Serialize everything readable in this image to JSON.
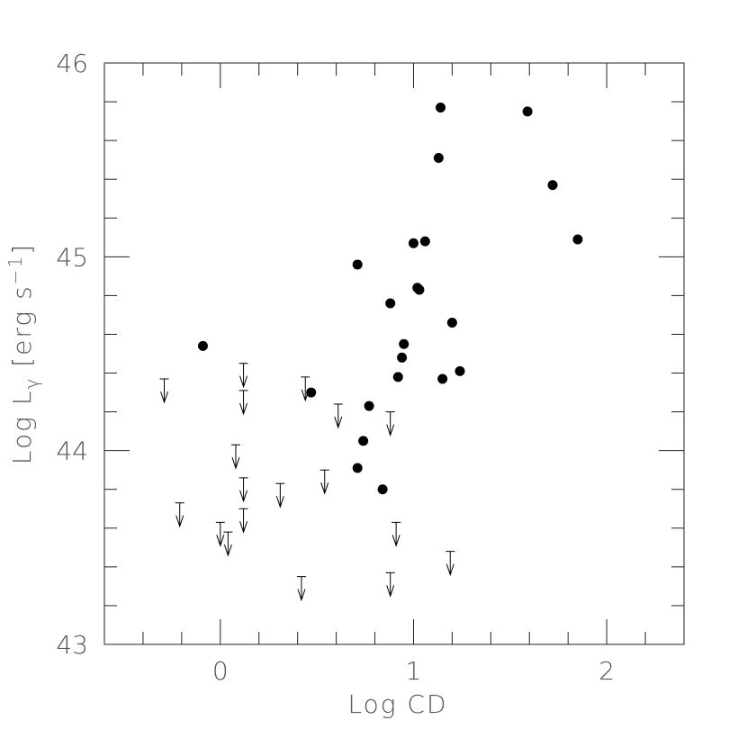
{
  "chart_data": {
    "type": "scatter",
    "xlabel": "Log CD",
    "ylabel": [
      "Log L",
      "γ",
      " [erg s",
      "−1",
      "]"
    ],
    "xlim": [
      -0.6,
      2.4
    ],
    "ylim": [
      43,
      46
    ],
    "xticks": [
      0,
      1,
      2
    ],
    "yticks": [
      43,
      44,
      45,
      46
    ],
    "xminorticks": [
      -0.4,
      -0.2,
      0.2,
      0.4,
      0.6,
      0.8,
      1.2,
      1.4,
      1.6,
      1.8,
      2.2
    ],
    "yminorticks": [
      43.2,
      43.4,
      43.6,
      43.8,
      44.2,
      44.4,
      44.6,
      44.8,
      45.2,
      45.4,
      45.6,
      45.8
    ],
    "color": "#000000",
    "points": {
      "x": [
        -0.09,
        0.47,
        0.77,
        0.74,
        0.71,
        0.84,
        0.71,
        0.88,
        0.95,
        0.94,
        0.92,
        1.0,
        1.06,
        1.02,
        1.03,
        1.2,
        1.24,
        1.15,
        1.14,
        1.13,
        1.59,
        1.72,
        1.85
      ],
      "y": [
        44.54,
        44.3,
        44.23,
        44.05,
        43.91,
        43.8,
        44.96,
        44.76,
        44.55,
        44.48,
        44.38,
        45.07,
        45.08,
        44.84,
        44.83,
        44.66,
        44.41,
        44.37,
        45.77,
        45.51,
        45.75,
        45.37,
        45.09
      ]
    },
    "upper_limits": {
      "x": [
        -0.29,
        0.12,
        0.12,
        0.44,
        0.61,
        0.88,
        0.08,
        0.12,
        0.54,
        0.31,
        -0.21,
        0.12,
        0.0,
        0.04,
        0.91,
        1.19,
        0.42,
        0.88
      ],
      "y": [
        44.37,
        44.45,
        44.31,
        44.38,
        44.24,
        44.2,
        44.03,
        43.86,
        43.9,
        43.83,
        43.73,
        43.7,
        43.63,
        43.58,
        43.63,
        43.48,
        43.35,
        43.37
      ]
    }
  }
}
